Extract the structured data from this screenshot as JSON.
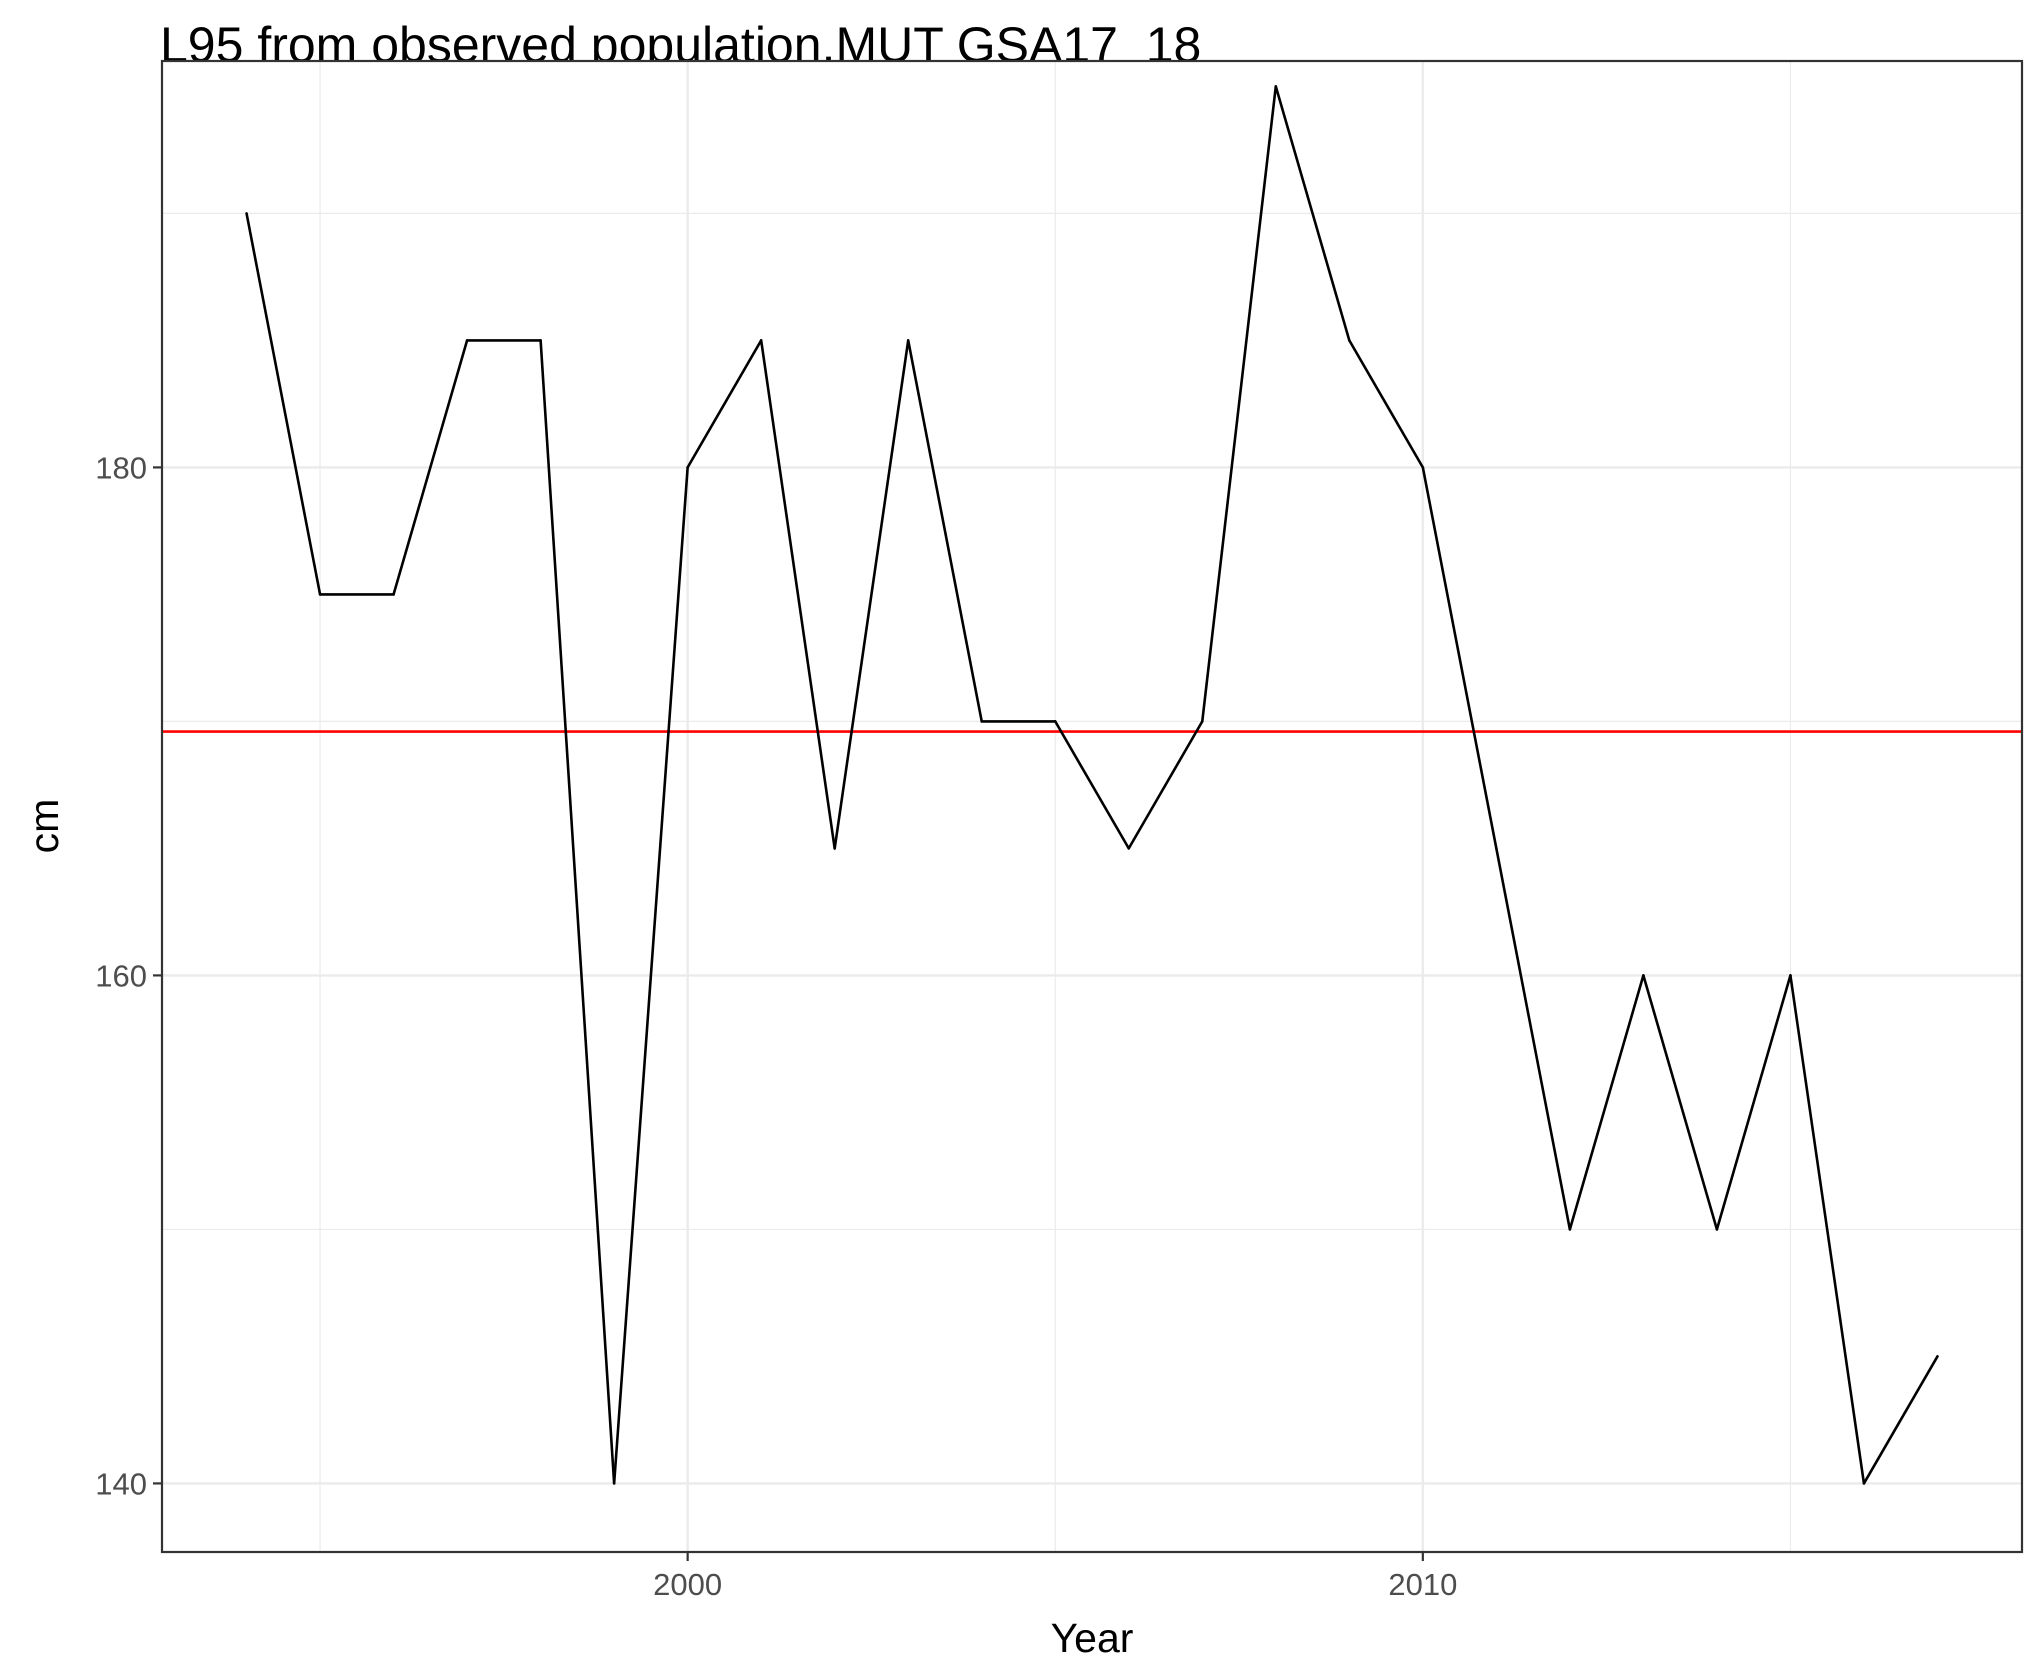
{
  "chart_data": {
    "type": "line",
    "title": "L95 from observed population,MUT GSA17_18",
    "xlabel": "Year",
    "ylabel": "cm",
    "xlim": [
      1992.85,
      2018.15
    ],
    "ylim": [
      137.3,
      196.0
    ],
    "x_ticks": [
      2000,
      2010
    ],
    "x_tick_labels": [
      "2000",
      "2010"
    ],
    "x_minor_ticks": [
      1995,
      2005,
      2015
    ],
    "y_ticks": [
      140,
      160,
      180
    ],
    "y_tick_labels": [
      "140",
      "160",
      "180"
    ],
    "y_minor_ticks": [
      150,
      170,
      190
    ],
    "grid": true,
    "series": [
      {
        "color": "#000000",
        "x": [
          1994,
          1995,
          1996,
          1997,
          1998,
          1999,
          2000,
          2001,
          2002,
          2003,
          2004,
          2005,
          2006,
          2007,
          2008,
          2009,
          2010,
          2011,
          2012,
          2013,
          2014,
          2015,
          2016,
          2017
        ],
        "values": [
          190,
          175,
          175,
          185,
          185,
          140,
          180,
          185,
          165,
          185,
          170,
          170,
          165,
          170,
          195,
          185,
          180,
          165,
          150,
          160,
          150,
          160,
          140,
          145
        ]
      }
    ],
    "reference_line": {
      "orientation": "horizontal",
      "y": 169.6,
      "color": "#ff0000"
    }
  }
}
